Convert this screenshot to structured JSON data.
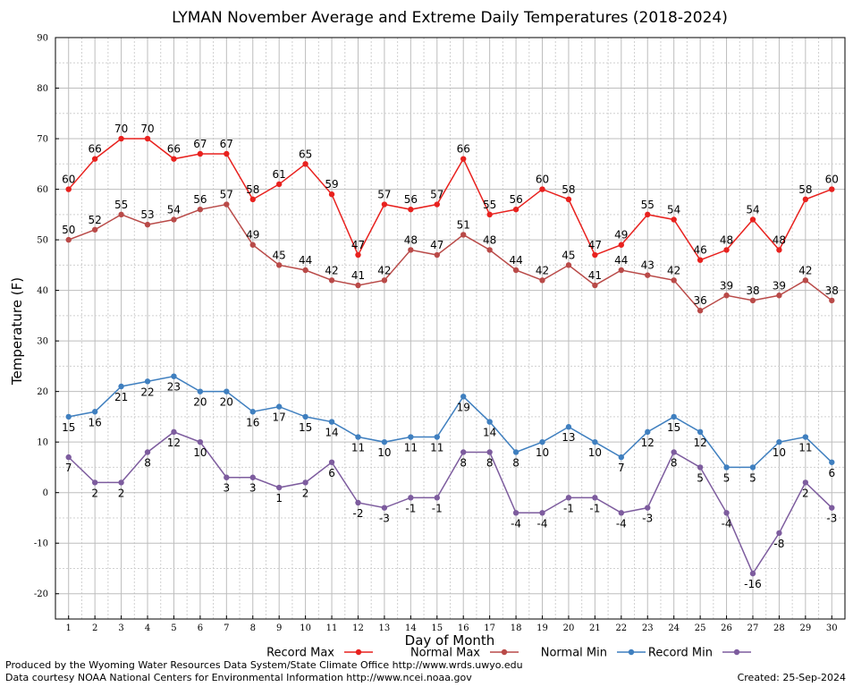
{
  "chart_data": {
    "type": "line",
    "title": "LYMAN November Average and Extreme Daily Temperatures (2018-2024)",
    "xlabel": "Day of Month",
    "ylabel": "Temperature (F)",
    "xlim": [
      0.5,
      30.5
    ],
    "ylim": [
      -25,
      90
    ],
    "yticks": [
      -20,
      -10,
      0,
      10,
      20,
      30,
      40,
      50,
      60,
      70,
      80,
      90
    ],
    "grid": true,
    "legend_position": "bottom",
    "x": [
      1,
      2,
      3,
      4,
      5,
      6,
      7,
      8,
      9,
      10,
      11,
      12,
      13,
      14,
      15,
      16,
      17,
      18,
      19,
      20,
      21,
      22,
      23,
      24,
      25,
      26,
      27,
      28,
      29,
      30
    ],
    "series": [
      {
        "name": "Record Max",
        "color": "#e8211e",
        "label_pos": "above",
        "values": [
          60,
          66,
          70,
          70,
          66,
          67,
          67,
          58,
          61,
          65,
          59,
          47,
          57,
          56,
          57,
          66,
          55,
          56,
          60,
          58,
          47,
          49,
          55,
          54,
          46,
          48,
          54,
          48,
          58,
          60
        ]
      },
      {
        "name": "Normal Max",
        "color": "#b94a48",
        "label_pos": "above",
        "values": [
          50,
          52,
          55,
          53,
          54,
          56,
          57,
          49,
          45,
          44,
          42,
          41,
          42,
          48,
          47,
          51,
          48,
          44,
          42,
          45,
          41,
          44,
          43,
          42,
          36,
          39,
          38,
          39,
          42,
          38
        ]
      },
      {
        "name": "Normal Min",
        "color": "#3f7fbf",
        "label_pos": "below",
        "values": [
          15,
          16,
          21,
          22,
          23,
          20,
          20,
          16,
          17,
          15,
          14,
          11,
          10,
          11,
          11,
          19,
          14,
          8,
          10,
          13,
          10,
          7,
          12,
          15,
          12,
          5,
          5,
          10,
          11,
          6
        ]
      },
      {
        "name": "Record Min",
        "color": "#7d5c9e",
        "label_pos": "below",
        "values": [
          7,
          2,
          2,
          8,
          12,
          10,
          3,
          3,
          1,
          2,
          6,
          -2,
          -3,
          -1,
          -1,
          8,
          8,
          -4,
          -4,
          -1,
          -1,
          -4,
          -3,
          8,
          5,
          -4,
          -16,
          -8,
          2,
          -3
        ]
      }
    ]
  },
  "footer": {
    "produced_by": "Produced by the Wyoming Water Resources Data System/State Climate Office http://www.wrds.uwyo.edu",
    "courtesy": "Data courtesy NOAA National Centers for Environmental Information http://www.ncei.noaa.gov",
    "created": "Created:  25-Sep-2024"
  }
}
